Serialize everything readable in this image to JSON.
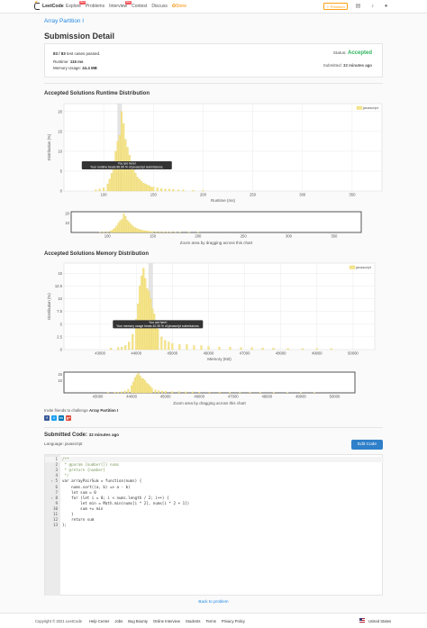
{
  "header": {
    "logo": "LeetCode",
    "nav": [
      {
        "label": "Explore",
        "badge": "New"
      },
      {
        "label": "Problems",
        "badge": ""
      },
      {
        "label": "Interview",
        "badge": "New"
      },
      {
        "label": "Contest",
        "badge": ""
      },
      {
        "label": "Discuss",
        "badge": ""
      },
      {
        "label": "Store",
        "badge": ""
      }
    ],
    "premium_label": "Premium",
    "icons": [
      "notebook-icon",
      "bell-icon",
      "user-icon"
    ]
  },
  "breadcrumb": "Array Partition I",
  "page_title": "Submission Detail",
  "summary": {
    "passed": "83 / 83",
    "passed_suffix": "test cases passed.",
    "runtime_label": "Runtime:",
    "runtime_value": "116 ms",
    "memory_label": "Memory Usage:",
    "memory_value": "44.4 MB",
    "status_label": "Status:",
    "status_value": "Accepted",
    "status_color": "#2db55d",
    "submitted_label": "Submitted:",
    "submitted_value": "32 minutes ago"
  },
  "runtime_section_title": "Accepted Solutions Runtime Distribution",
  "memory_section_title": "Accepted Solutions Memory Distribution",
  "chart_data": [
    {
      "type": "bar",
      "title": "Accepted Solutions Runtime Distribution",
      "xlabel": "Runtime (ms)",
      "ylabel": "Distribution (%)",
      "legend": "javascript",
      "legend_position": "top-right",
      "xlim": [
        60,
        380
      ],
      "ylim": [
        0,
        22
      ],
      "xticks": [
        100,
        150,
        200,
        250,
        300,
        350
      ],
      "yticks": [
        0,
        5,
        10,
        15,
        20
      ],
      "grid": true,
      "color": "#f5e58c",
      "highlight_x": 116,
      "tooltip": [
        "You are here!",
        "Your runtime beats 86.99 % of javascript submissions."
      ],
      "x": [
        92,
        96,
        100,
        104,
        106,
        108,
        110,
        112,
        114,
        116,
        118,
        120,
        122,
        124,
        126,
        128,
        130,
        132,
        134,
        136,
        138,
        140,
        142,
        144,
        146,
        148,
        150,
        154,
        158,
        162,
        166,
        170,
        175,
        180,
        190,
        200
      ],
      "values": [
        0.3,
        0.5,
        0.8,
        1.8,
        3,
        4.5,
        7,
        10,
        12.5,
        14,
        20,
        17,
        13,
        11,
        9,
        7,
        5.5,
        4.5,
        3.5,
        3,
        2.5,
        2,
        1.8,
        1.5,
        1.3,
        1,
        1,
        0.8,
        0.6,
        0.5,
        0.5,
        0.4,
        0.3,
        0.3,
        0.2,
        0.2
      ]
    },
    {
      "type": "bar",
      "title": "",
      "xlabel": "Zoom area by dragging across this chart",
      "ylabel": "",
      "xlim": [
        60,
        380
      ],
      "ylim": [
        0,
        22
      ],
      "xticks": [
        100,
        150,
        200,
        250,
        300,
        350
      ],
      "yticks": [
        10,
        20
      ],
      "color": "#f5e58c",
      "x": [
        92,
        96,
        100,
        104,
        106,
        108,
        110,
        112,
        114,
        116,
        118,
        120,
        122,
        124,
        126,
        128,
        130,
        132,
        134,
        136,
        138,
        140,
        142,
        144,
        146,
        148,
        150,
        154,
        158,
        162,
        166,
        170,
        175,
        180,
        190,
        200
      ],
      "values": [
        0.3,
        0.5,
        0.8,
        1.8,
        3,
        4.5,
        7,
        10,
        12.5,
        14,
        20,
        17,
        13,
        11,
        9,
        7,
        5.5,
        4.5,
        3.5,
        3,
        2.5,
        2,
        1.8,
        1.5,
        1.3,
        1,
        1,
        0.8,
        0.6,
        0.5,
        0.5,
        0.4,
        0.3,
        0.3,
        0.2,
        0.2
      ]
    },
    {
      "type": "bar",
      "title": "Accepted Solutions Memory Distribution",
      "xlabel": "Memory (KB)",
      "ylabel": "Distribution (%)",
      "legend": "javascript",
      "legend_position": "top-right",
      "xlim": [
        42000,
        50600
      ],
      "ylim": [
        0,
        17
      ],
      "xticks": [
        43000,
        44000,
        45000,
        46000,
        47000,
        48000,
        49000,
        50000
      ],
      "yticks": [
        0,
        2.5,
        5,
        7.5,
        10,
        12.5,
        15
      ],
      "grid": true,
      "color": "#f5e58c",
      "highlight_x": 44400,
      "tooltip": [
        "You are here!",
        "Your memory usage beats 40.35 % of javascript submissions."
      ],
      "x": [
        43300,
        43500,
        43600,
        43700,
        43800,
        43900,
        44000,
        44050,
        44100,
        44150,
        44200,
        44250,
        44300,
        44350,
        44400,
        44450,
        44500,
        44550,
        44600,
        44700,
        44800,
        44900,
        45000,
        45200,
        45400,
        45600,
        45800,
        46000,
        46300,
        46600,
        46900,
        47200,
        47500,
        47800,
        48200,
        48600,
        49000,
        49400
      ],
      "values": [
        0.3,
        0.4,
        0.5,
        0.8,
        1.5,
        3,
        6,
        9,
        12.5,
        14.5,
        16,
        14,
        12,
        11.5,
        10,
        8,
        7,
        5.5,
        4,
        2.5,
        1.8,
        1.5,
        1.2,
        1,
        1,
        0.8,
        0.8,
        0.6,
        0.5,
        0.5,
        0.4,
        0.4,
        0.3,
        0.3,
        0.2,
        0.2,
        0.2,
        0.2
      ]
    },
    {
      "type": "bar",
      "title": "",
      "xlabel": "Zoom area by dragging across this chart",
      "ylabel": "",
      "xlim": [
        42000,
        50600
      ],
      "ylim": [
        0,
        17
      ],
      "xticks": [
        43000,
        44000,
        45000,
        46000,
        47000,
        48000,
        49000,
        50000
      ],
      "yticks": [
        10,
        15
      ],
      "color": "#f5e58c",
      "x": [
        43300,
        43500,
        43600,
        43700,
        43800,
        43900,
        44000,
        44050,
        44100,
        44150,
        44200,
        44250,
        44300,
        44350,
        44400,
        44450,
        44500,
        44550,
        44600,
        44700,
        44800,
        44900,
        45000,
        45200,
        45400,
        45600,
        45800,
        46000,
        46300,
        46600,
        46900,
        47200,
        47500,
        47800,
        48200,
        48600,
        49000,
        49400
      ],
      "values": [
        0.3,
        0.4,
        0.5,
        0.8,
        1.5,
        3,
        6,
        9,
        12.5,
        14.5,
        16,
        14,
        12,
        11.5,
        10,
        8,
        7,
        5.5,
        4,
        2.5,
        1.8,
        1.5,
        1.2,
        1,
        1,
        0.8,
        0.8,
        0.6,
        0.5,
        0.5,
        0.4,
        0.4,
        0.3,
        0.3,
        0.2,
        0.2,
        0.2,
        0.2
      ]
    }
  ],
  "invite": {
    "prefix": "Invite friends to challenge",
    "problem": "Array Partition I"
  },
  "share_icons": [
    {
      "name": "facebook-icon",
      "glyph": "f",
      "color": "#3b5998"
    },
    {
      "name": "twitter-icon",
      "glyph": "t",
      "color": "#1da1f2"
    },
    {
      "name": "linkedin-icon",
      "glyph": "in",
      "color": "#0077b5"
    },
    {
      "name": "google-plus-icon",
      "glyph": "g+",
      "color": "#dd4b39"
    }
  ],
  "submitted_code": {
    "label": "Submitted Code:",
    "time": "32 minutes ago",
    "language_label": "Language:",
    "language": "javascript",
    "edit_button": "Edit Code"
  },
  "code": [
    {
      "n": "1",
      "text": "/**",
      "fold": false
    },
    {
      "n": "2",
      "text": " * @param {number[]} nums",
      "fold": false
    },
    {
      "n": "3",
      "text": " * @return {number}",
      "fold": false
    },
    {
      "n": "4",
      "text": " */",
      "fold": false
    },
    {
      "n": "5",
      "text": "var arrayPairSum = function(nums) {",
      "fold": true
    },
    {
      "n": "6",
      "text": "    nums.sort((a, b) => a - b)",
      "fold": false
    },
    {
      "n": "7",
      "text": "    let sum = 0",
      "fold": false
    },
    {
      "n": "8",
      "text": "    for (let i = 0; i < nums.length / 2; i++) {",
      "fold": true
    },
    {
      "n": "9",
      "text": "        let min = Math.min(nums[i * 2], nums[i * 2 + 1])",
      "fold": false
    },
    {
      "n": "10",
      "text": "        sum += min",
      "fold": false
    },
    {
      "n": "11",
      "text": "    }",
      "fold": false
    },
    {
      "n": "12",
      "text": "    return sum",
      "fold": false
    },
    {
      "n": "13",
      "text": "};",
      "fold": false
    }
  ],
  "back_link": "Back to problem",
  "footer": {
    "copyright": "Copyright © 2021 LeetCode",
    "links": [
      "Help Center",
      "Jobs",
      "Bug Bounty",
      "Online Interview",
      "Students",
      "Terms",
      "Privacy Policy"
    ],
    "country": "United States"
  }
}
